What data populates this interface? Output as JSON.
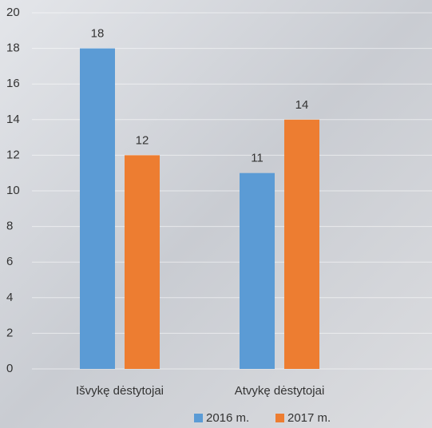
{
  "chart_data": {
    "type": "bar",
    "categories": [
      "Išvykę dėstytojai",
      "Atvykę dėstytojai"
    ],
    "series": [
      {
        "name": "2016 m.",
        "color": "#5b9bd5",
        "values": [
          18,
          11
        ]
      },
      {
        "name": "2017 m.",
        "color": "#ed7d31",
        "values": [
          12,
          14
        ]
      }
    ],
    "ylim": [
      0,
      20
    ],
    "yticks": [
      0,
      2,
      4,
      6,
      8,
      10,
      12,
      14,
      16,
      18,
      20
    ],
    "grid": true,
    "legend": "bottom"
  }
}
